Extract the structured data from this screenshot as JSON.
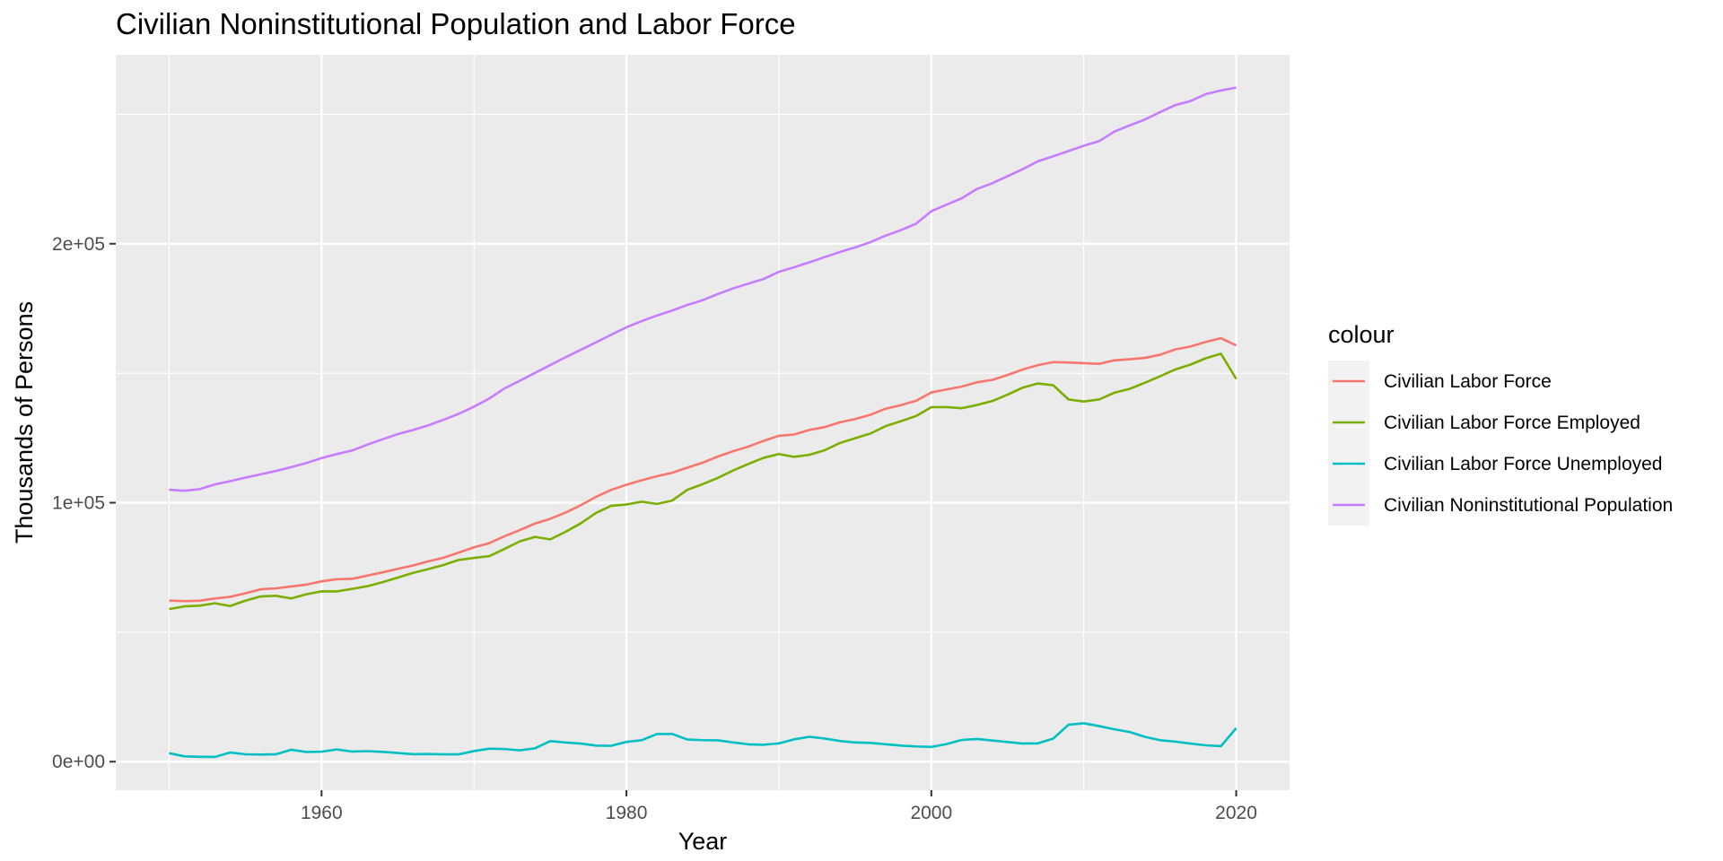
{
  "chart_data": {
    "type": "line",
    "title": "Civilian Noninstitutional Population and Labor Force",
    "xlabel": "Year",
    "ylabel": "Thousands of Persons",
    "xlim": [
      1946.5,
      2023.5
    ],
    "ylim": [
      -11000,
      273000
    ],
    "x_ticks": [
      1960,
      1980,
      2000,
      2020
    ],
    "x_tick_labels": [
      "1960",
      "1980",
      "2000",
      "2020"
    ],
    "y_ticks": [
      0,
      100000,
      200000
    ],
    "y_tick_labels": [
      "0e+00",
      "1e+05",
      "2e+05"
    ],
    "grid": true,
    "legend": {
      "title": "colour",
      "position": "right"
    },
    "x": [
      1950,
      1951,
      1952,
      1953,
      1954,
      1955,
      1956,
      1957,
      1958,
      1959,
      1960,
      1961,
      1962,
      1963,
      1964,
      1965,
      1966,
      1967,
      1968,
      1969,
      1970,
      1971,
      1972,
      1973,
      1974,
      1975,
      1976,
      1977,
      1978,
      1979,
      1980,
      1981,
      1982,
      1983,
      1984,
      1985,
      1986,
      1987,
      1988,
      1989,
      1990,
      1991,
      1992,
      1993,
      1994,
      1995,
      1996,
      1997,
      1998,
      1999,
      2000,
      2001,
      2002,
      2003,
      2004,
      2005,
      2006,
      2007,
      2008,
      2009,
      2010,
      2011,
      2012,
      2013,
      2014,
      2015,
      2016,
      2017,
      2018,
      2019,
      2020
    ],
    "series": [
      {
        "name": "Civilian Labor Force",
        "color": "#F8766D",
        "values": [
          62208,
          62017,
          62138,
          63015,
          63643,
          65023,
          66552,
          66929,
          67639,
          68369,
          69628,
          70459,
          70614,
          71833,
          73091,
          74455,
          75770,
          77347,
          78737,
          80734,
          82771,
          84382,
          87034,
          89429,
          91949,
          93775,
          96158,
          99009,
          102251,
          104962,
          106940,
          108670,
          110204,
          111550,
          113544,
          115461,
          117834,
          119865,
          121669,
          123869,
          125840,
          126346,
          128105,
          129200,
          131056,
          132304,
          133943,
          136297,
          137673,
          139368,
          142583,
          143734,
          144863,
          146510,
          147401,
          149320,
          151428,
          153124,
          154287,
          154142,
          153889,
          153617,
          154975,
          155389,
          155922,
          157130,
          159187,
          160320,
          162075,
          163539,
          160742
        ]
      },
      {
        "name": "Civilian Labor Force Employed",
        "color": "#7CAE00",
        "values": [
          58918,
          59961,
          60250,
          61179,
          60109,
          62170,
          63799,
          64071,
          63036,
          64630,
          65778,
          65746,
          66702,
          67762,
          69305,
          71088,
          72895,
          74372,
          75920,
          77902,
          78678,
          79367,
          82153,
          85064,
          86794,
          85846,
          88752,
          92017,
          96048,
          98824,
          99303,
          100397,
          99526,
          100834,
          105005,
          107150,
          109597,
          112440,
          114968,
          117342,
          118793,
          117718,
          118492,
          120259,
          123060,
          124900,
          126708,
          129558,
          131463,
          133488,
          136891,
          136933,
          136485,
          137736,
          139252,
          141730,
          144427,
          146047,
          145362,
          139877,
          139064,
          139869,
          142469,
          143929,
          146305,
          148834,
          151436,
          153337,
          155761,
          157538,
          147795
        ]
      },
      {
        "name": "Civilian Labor Force Unemployed",
        "color": "#00BFC4",
        "values": [
          3288,
          2055,
          1883,
          1834,
          3532,
          2852,
          2750,
          2859,
          4602,
          3740,
          3852,
          4714,
          3911,
          4070,
          3786,
          3366,
          2875,
          2975,
          2817,
          2832,
          4093,
          5016,
          4882,
          4365,
          5156,
          7929,
          7406,
          6991,
          6202,
          6137,
          7637,
          8273,
          10678,
          10717,
          8539,
          8312,
          8237,
          7425,
          6701,
          6528,
          7047,
          8628,
          9613,
          8940,
          7996,
          7404,
          7236,
          6739,
          6210,
          5880,
          5692,
          6801,
          8378,
          8774,
          8149,
          7591,
          7001,
          7078,
          8924,
          14265,
          14825,
          13747,
          12506,
          11460,
          9617,
          8296,
          7751,
          6982,
          6314,
          6001,
          12947
        ]
      },
      {
        "name": "Civilian Noninstitutional Population",
        "color": "#C77CFF",
        "values": [
          104995,
          104621,
          105231,
          107056,
          108321,
          109683,
          110954,
          112265,
          113727,
          115329,
          117245,
          118771,
          120153,
          122416,
          124485,
          126513,
          128058,
          129874,
          132028,
          134335,
          137085,
          140216,
          144126,
          147096,
          150120,
          153153,
          156150,
          159033,
          161910,
          164863,
          167745,
          170130,
          172271,
          174215,
          176383,
          178206,
          180587,
          182753,
          184613,
          186393,
          189164,
          190925,
          192805,
          194838,
          196814,
          198584,
          200591,
          203133,
          205220,
          207753,
          212577,
          215092,
          217570,
          221168,
          223357,
          226082,
          228815,
          231867,
          233788,
          235801,
          237830,
          239618,
          243284,
          245679,
          247947,
          250801,
          253538,
          255079,
          257791,
          259175,
          260329
        ]
      }
    ]
  }
}
